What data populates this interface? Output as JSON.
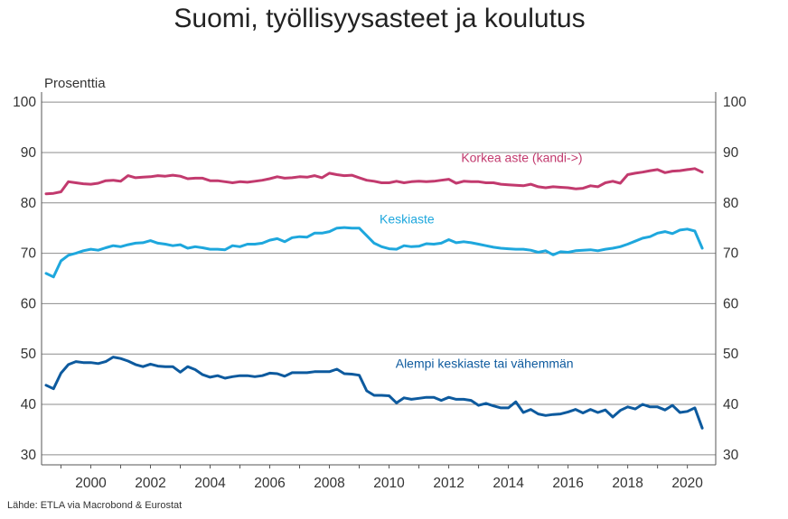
{
  "title": "Suomi, työllisyysasteet ja koulutus",
  "unit": "Prosenttia",
  "source": "Lähde: ETLA via Macrobond & Eurostat",
  "colors": {
    "grid": "#8c8c8c",
    "axis": "#555555"
  },
  "chart_data": {
    "type": "line",
    "title": "Suomi, työllisyysasteet ja koulutus",
    "ylabel": "Prosenttia",
    "xlabel": "",
    "xlim": [
      1998.35,
      2020.95
    ],
    "ylim": [
      28,
      102
    ],
    "yticks": [
      30,
      40,
      50,
      60,
      70,
      80,
      90,
      100
    ],
    "xticks": [
      2000,
      2002,
      2004,
      2006,
      2008,
      2010,
      2012,
      2014,
      2016,
      2018,
      2020
    ],
    "grid": true,
    "series": [
      {
        "name": "Korkea aste (kandi->)",
        "color": "#c23a6e",
        "points": [
          [
            1998.5,
            81.8
          ],
          [
            1998.75,
            81.9
          ],
          [
            1999.0,
            82.2
          ],
          [
            1999.25,
            84.2
          ],
          [
            1999.5,
            84.0
          ],
          [
            1999.75,
            83.8
          ],
          [
            2000.0,
            83.7
          ],
          [
            2000.25,
            83.9
          ],
          [
            2000.5,
            84.4
          ],
          [
            2000.75,
            84.5
          ],
          [
            2001.0,
            84.3
          ],
          [
            2001.25,
            85.4
          ],
          [
            2001.5,
            85.0
          ],
          [
            2001.75,
            85.1
          ],
          [
            2002.0,
            85.2
          ],
          [
            2002.25,
            85.4
          ],
          [
            2002.5,
            85.3
          ],
          [
            2002.75,
            85.5
          ],
          [
            2003.0,
            85.3
          ],
          [
            2003.25,
            84.8
          ],
          [
            2003.5,
            84.9
          ],
          [
            2003.75,
            84.9
          ],
          [
            2004.0,
            84.4
          ],
          [
            2004.25,
            84.4
          ],
          [
            2004.5,
            84.2
          ],
          [
            2004.75,
            84.0
          ],
          [
            2005.0,
            84.2
          ],
          [
            2005.25,
            84.1
          ],
          [
            2005.5,
            84.3
          ],
          [
            2005.75,
            84.5
          ],
          [
            2006.0,
            84.8
          ],
          [
            2006.25,
            85.2
          ],
          [
            2006.5,
            84.9
          ],
          [
            2006.75,
            85.0
          ],
          [
            2007.0,
            85.2
          ],
          [
            2007.25,
            85.1
          ],
          [
            2007.5,
            85.4
          ],
          [
            2007.75,
            85.0
          ],
          [
            2008.0,
            85.9
          ],
          [
            2008.25,
            85.6
          ],
          [
            2008.5,
            85.4
          ],
          [
            2008.75,
            85.5
          ],
          [
            2009.0,
            85.0
          ],
          [
            2009.25,
            84.5
          ],
          [
            2009.5,
            84.3
          ],
          [
            2009.75,
            84.0
          ],
          [
            2010.0,
            84.0
          ],
          [
            2010.25,
            84.3
          ],
          [
            2010.5,
            84.0
          ],
          [
            2010.75,
            84.2
          ],
          [
            2011.0,
            84.3
          ],
          [
            2011.25,
            84.2
          ],
          [
            2011.5,
            84.3
          ],
          [
            2011.75,
            84.5
          ],
          [
            2012.0,
            84.7
          ],
          [
            2012.25,
            83.9
          ],
          [
            2012.5,
            84.3
          ],
          [
            2012.75,
            84.2
          ],
          [
            2013.0,
            84.2
          ],
          [
            2013.25,
            84.0
          ],
          [
            2013.5,
            84.0
          ],
          [
            2013.75,
            83.7
          ],
          [
            2014.0,
            83.6
          ],
          [
            2014.25,
            83.5
          ],
          [
            2014.5,
            83.4
          ],
          [
            2014.75,
            83.7
          ],
          [
            2015.0,
            83.2
          ],
          [
            2015.25,
            83.0
          ],
          [
            2015.5,
            83.2
          ],
          [
            2015.75,
            83.1
          ],
          [
            2016.0,
            83.0
          ],
          [
            2016.25,
            82.8
          ],
          [
            2016.5,
            82.9
          ],
          [
            2016.75,
            83.4
          ],
          [
            2017.0,
            83.2
          ],
          [
            2017.25,
            84.0
          ],
          [
            2017.5,
            84.3
          ],
          [
            2017.75,
            83.9
          ],
          [
            2018.0,
            85.6
          ],
          [
            2018.25,
            85.9
          ],
          [
            2018.5,
            86.1
          ],
          [
            2018.75,
            86.4
          ],
          [
            2019.0,
            86.6
          ],
          [
            2019.25,
            86.0
          ],
          [
            2019.5,
            86.3
          ],
          [
            2019.75,
            86.4
          ],
          [
            2020.0,
            86.6
          ],
          [
            2020.25,
            86.8
          ],
          [
            2020.5,
            86.1
          ]
        ]
      },
      {
        "name": "Keskiaste",
        "color": "#1ea7dd",
        "points": [
          [
            1998.5,
            66.0
          ],
          [
            1998.75,
            65.3
          ],
          [
            1999.0,
            68.5
          ],
          [
            1999.25,
            69.6
          ],
          [
            1999.5,
            70.0
          ],
          [
            1999.75,
            70.5
          ],
          [
            2000.0,
            70.8
          ],
          [
            2000.25,
            70.6
          ],
          [
            2000.5,
            71.1
          ],
          [
            2000.75,
            71.5
          ],
          [
            2001.0,
            71.3
          ],
          [
            2001.25,
            71.7
          ],
          [
            2001.5,
            72.0
          ],
          [
            2001.75,
            72.1
          ],
          [
            2002.0,
            72.5
          ],
          [
            2002.25,
            72.0
          ],
          [
            2002.5,
            71.8
          ],
          [
            2002.75,
            71.5
          ],
          [
            2003.0,
            71.7
          ],
          [
            2003.25,
            71.0
          ],
          [
            2003.5,
            71.3
          ],
          [
            2003.75,
            71.1
          ],
          [
            2004.0,
            70.8
          ],
          [
            2004.25,
            70.8
          ],
          [
            2004.5,
            70.7
          ],
          [
            2004.75,
            71.5
          ],
          [
            2005.0,
            71.3
          ],
          [
            2005.25,
            71.8
          ],
          [
            2005.5,
            71.8
          ],
          [
            2005.75,
            72.0
          ],
          [
            2006.0,
            72.6
          ],
          [
            2006.25,
            72.9
          ],
          [
            2006.5,
            72.3
          ],
          [
            2006.75,
            73.1
          ],
          [
            2007.0,
            73.3
          ],
          [
            2007.25,
            73.2
          ],
          [
            2007.5,
            74.0
          ],
          [
            2007.75,
            74.0
          ],
          [
            2008.0,
            74.3
          ],
          [
            2008.25,
            75.0
          ],
          [
            2008.5,
            75.1
          ],
          [
            2008.75,
            75.0
          ],
          [
            2009.0,
            75.0
          ],
          [
            2009.25,
            73.5
          ],
          [
            2009.5,
            72.0
          ],
          [
            2009.75,
            71.3
          ],
          [
            2010.0,
            70.9
          ],
          [
            2010.25,
            70.8
          ],
          [
            2010.5,
            71.5
          ],
          [
            2010.75,
            71.3
          ],
          [
            2011.0,
            71.4
          ],
          [
            2011.25,
            71.9
          ],
          [
            2011.5,
            71.8
          ],
          [
            2011.75,
            72.0
          ],
          [
            2012.0,
            72.7
          ],
          [
            2012.25,
            72.1
          ],
          [
            2012.5,
            72.3
          ],
          [
            2012.75,
            72.1
          ],
          [
            2013.0,
            71.8
          ],
          [
            2013.25,
            71.5
          ],
          [
            2013.5,
            71.2
          ],
          [
            2013.75,
            71.0
          ],
          [
            2014.0,
            70.9
          ],
          [
            2014.25,
            70.8
          ],
          [
            2014.5,
            70.8
          ],
          [
            2014.75,
            70.6
          ],
          [
            2015.0,
            70.2
          ],
          [
            2015.25,
            70.5
          ],
          [
            2015.5,
            69.7
          ],
          [
            2015.75,
            70.3
          ],
          [
            2016.0,
            70.2
          ],
          [
            2016.25,
            70.5
          ],
          [
            2016.5,
            70.6
          ],
          [
            2016.75,
            70.7
          ],
          [
            2017.0,
            70.5
          ],
          [
            2017.25,
            70.8
          ],
          [
            2017.5,
            71.0
          ],
          [
            2017.75,
            71.3
          ],
          [
            2018.0,
            71.8
          ],
          [
            2018.25,
            72.4
          ],
          [
            2018.5,
            73.0
          ],
          [
            2018.75,
            73.3
          ],
          [
            2019.0,
            74.0
          ],
          [
            2019.25,
            74.3
          ],
          [
            2019.5,
            73.9
          ],
          [
            2019.75,
            74.6
          ],
          [
            2020.0,
            74.8
          ],
          [
            2020.25,
            74.4
          ],
          [
            2020.5,
            71.0
          ]
        ]
      },
      {
        "name": "Alempi keskiaste tai vähemmän",
        "color": "#0d5a9e",
        "points": [
          [
            1998.5,
            43.8
          ],
          [
            1998.75,
            43.1
          ],
          [
            1999.0,
            46.2
          ],
          [
            1999.25,
            47.9
          ],
          [
            1999.5,
            48.5
          ],
          [
            1999.75,
            48.3
          ],
          [
            2000.0,
            48.3
          ],
          [
            2000.25,
            48.1
          ],
          [
            2000.5,
            48.5
          ],
          [
            2000.75,
            49.4
          ],
          [
            2001.0,
            49.1
          ],
          [
            2001.25,
            48.6
          ],
          [
            2001.5,
            47.9
          ],
          [
            2001.75,
            47.5
          ],
          [
            2002.0,
            48.0
          ],
          [
            2002.25,
            47.6
          ],
          [
            2002.5,
            47.5
          ],
          [
            2002.75,
            47.5
          ],
          [
            2003.0,
            46.4
          ],
          [
            2003.25,
            47.5
          ],
          [
            2003.5,
            46.9
          ],
          [
            2003.75,
            45.9
          ],
          [
            2004.0,
            45.4
          ],
          [
            2004.25,
            45.7
          ],
          [
            2004.5,
            45.2
          ],
          [
            2004.75,
            45.5
          ],
          [
            2005.0,
            45.7
          ],
          [
            2005.25,
            45.7
          ],
          [
            2005.5,
            45.5
          ],
          [
            2005.75,
            45.7
          ],
          [
            2006.0,
            46.2
          ],
          [
            2006.25,
            46.1
          ],
          [
            2006.5,
            45.6
          ],
          [
            2006.75,
            46.3
          ],
          [
            2007.0,
            46.3
          ],
          [
            2007.25,
            46.3
          ],
          [
            2007.5,
            46.5
          ],
          [
            2007.75,
            46.5
          ],
          [
            2008.0,
            46.5
          ],
          [
            2008.25,
            47.0
          ],
          [
            2008.5,
            46.1
          ],
          [
            2008.75,
            46.0
          ],
          [
            2009.0,
            45.8
          ],
          [
            2009.25,
            42.7
          ],
          [
            2009.5,
            41.8
          ],
          [
            2009.75,
            41.8
          ],
          [
            2010.0,
            41.7
          ],
          [
            2010.25,
            40.3
          ],
          [
            2010.5,
            41.3
          ],
          [
            2010.75,
            41.0
          ],
          [
            2011.0,
            41.2
          ],
          [
            2011.25,
            41.4
          ],
          [
            2011.5,
            41.4
          ],
          [
            2011.75,
            40.8
          ],
          [
            2012.0,
            41.4
          ],
          [
            2012.25,
            41.0
          ],
          [
            2012.5,
            41.0
          ],
          [
            2012.75,
            40.8
          ],
          [
            2013.0,
            39.8
          ],
          [
            2013.25,
            40.2
          ],
          [
            2013.5,
            39.7
          ],
          [
            2013.75,
            39.3
          ],
          [
            2014.0,
            39.3
          ],
          [
            2014.25,
            40.5
          ],
          [
            2014.5,
            38.4
          ],
          [
            2014.75,
            39.0
          ],
          [
            2015.0,
            38.1
          ],
          [
            2015.25,
            37.8
          ],
          [
            2015.5,
            38.0
          ],
          [
            2015.75,
            38.1
          ],
          [
            2016.0,
            38.5
          ],
          [
            2016.25,
            39.0
          ],
          [
            2016.5,
            38.3
          ],
          [
            2016.75,
            39.0
          ],
          [
            2017.0,
            38.4
          ],
          [
            2017.25,
            38.9
          ],
          [
            2017.5,
            37.5
          ],
          [
            2017.75,
            38.8
          ],
          [
            2018.0,
            39.5
          ],
          [
            2018.25,
            39.1
          ],
          [
            2018.5,
            40.0
          ],
          [
            2018.75,
            39.5
          ],
          [
            2019.0,
            39.5
          ],
          [
            2019.25,
            38.9
          ],
          [
            2019.5,
            39.8
          ],
          [
            2019.75,
            38.4
          ],
          [
            2020.0,
            38.6
          ],
          [
            2020.25,
            39.3
          ],
          [
            2020.5,
            35.3
          ]
        ]
      }
    ]
  }
}
